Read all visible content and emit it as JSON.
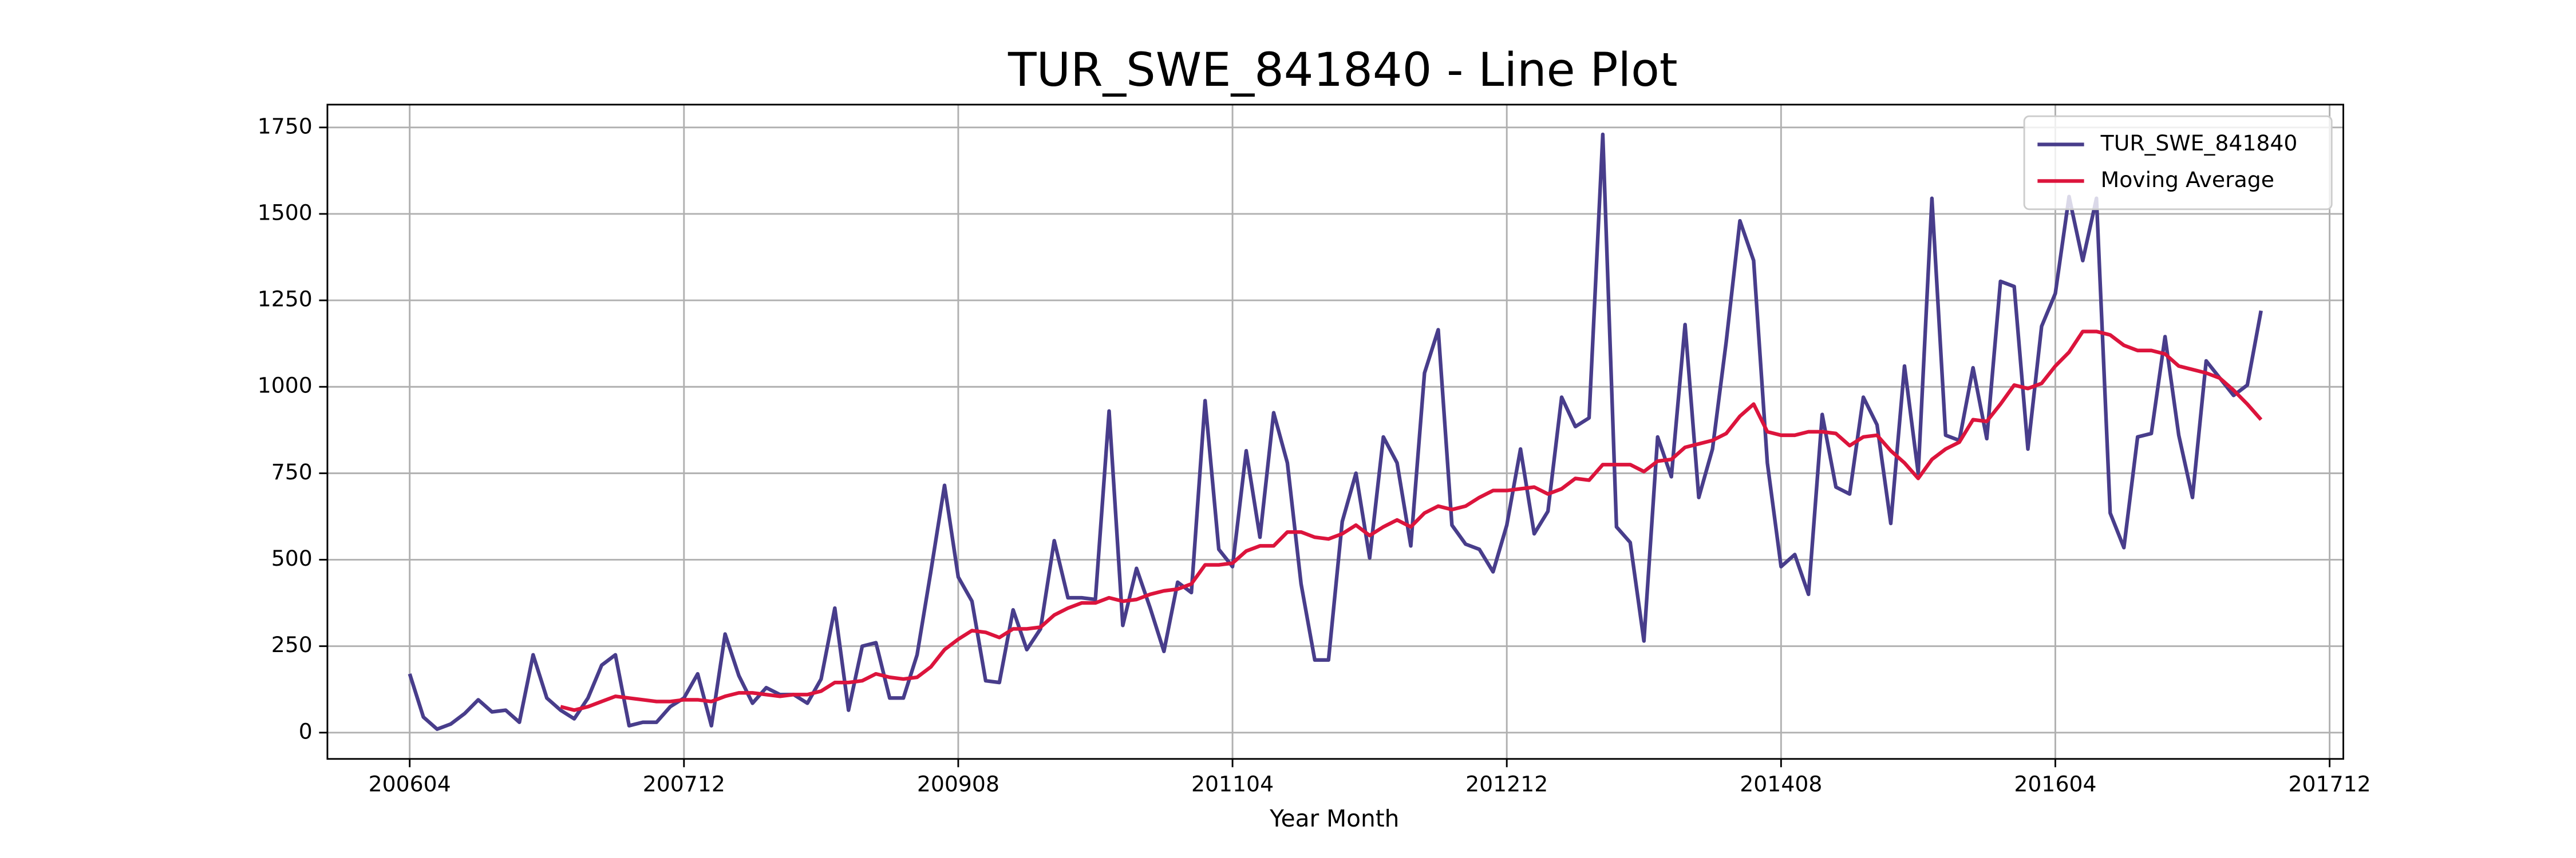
{
  "chart_data": {
    "type": "line",
    "title": "TUR_SWE_841840 - Line Plot",
    "xlabel": "Year Month",
    "x": [
      "200604",
      "200605",
      "200606",
      "200607",
      "200608",
      "200609",
      "200610",
      "200611",
      "200612",
      "200701",
      "200702",
      "200703",
      "200704",
      "200705",
      "200706",
      "200707",
      "200708",
      "200709",
      "200710",
      "200711",
      "200712",
      "200801",
      "200802",
      "200803",
      "200804",
      "200805",
      "200806",
      "200807",
      "200808",
      "200809",
      "200810",
      "200811",
      "200812",
      "200901",
      "200902",
      "200903",
      "200904",
      "200905",
      "200906",
      "200907",
      "200908",
      "200909",
      "200910",
      "200911",
      "200912",
      "201001",
      "201002",
      "201003",
      "201004",
      "201005",
      "201006",
      "201007",
      "201008",
      "201009",
      "201010",
      "201011",
      "201012",
      "201101",
      "201102",
      "201103",
      "201104",
      "201105",
      "201106",
      "201107",
      "201108",
      "201109",
      "201110",
      "201111",
      "201112",
      "201201",
      "201202",
      "201203",
      "201204",
      "201205",
      "201206",
      "201207",
      "201208",
      "201209",
      "201210",
      "201211",
      "201212",
      "201301",
      "201302",
      "201303",
      "201304",
      "201305",
      "201306",
      "201307",
      "201308",
      "201309",
      "201310",
      "201311",
      "201312",
      "201401",
      "201402",
      "201403",
      "201404",
      "201405",
      "201406",
      "201407",
      "201408",
      "201409",
      "201410",
      "201411",
      "201412",
      "201501",
      "201502",
      "201503",
      "201504",
      "201505",
      "201506",
      "201507",
      "201508",
      "201509",
      "201510",
      "201511",
      "201512",
      "201601",
      "201602",
      "201603",
      "201604",
      "201605",
      "201606",
      "201607",
      "201608",
      "201609",
      "201610",
      "201611",
      "201612",
      "201701",
      "201702",
      "201703",
      "201704",
      "201705",
      "201706",
      "201707"
    ],
    "series": [
      {
        "name": "TUR_SWE_841840",
        "color": "#483d8b",
        "values": [
          170,
          45,
          10,
          25,
          55,
          95,
          60,
          65,
          30,
          225,
          100,
          65,
          40,
          100,
          195,
          225,
          20,
          30,
          30,
          75,
          100,
          170,
          20,
          285,
          165,
          85,
          130,
          110,
          110,
          85,
          155,
          360,
          65,
          250,
          260,
          100,
          100,
          225,
          465,
          715,
          450,
          380,
          150,
          145,
          355,
          240,
          300,
          555,
          390,
          390,
          385,
          930,
          310,
          475,
          360,
          235,
          435,
          405,
          960,
          530,
          480,
          815,
          565,
          925,
          780,
          430,
          210,
          210,
          610,
          750,
          505,
          855,
          780,
          540,
          1040,
          1165,
          600,
          545,
          530,
          465,
          600,
          820,
          575,
          640,
          970,
          885,
          910,
          1730,
          595,
          550,
          265,
          855,
          740,
          1180,
          680,
          820,
          1130,
          1480,
          1365,
          780,
          480,
          515,
          400,
          920,
          710,
          690,
          970,
          890,
          605,
          1060,
          750,
          1545,
          860,
          845,
          1055,
          850,
          1305,
          1290,
          820,
          1175,
          1270,
          1550,
          1365,
          1545,
          635,
          535,
          855,
          865,
          1145,
          860,
          680,
          1075,
          1025,
          975,
          1005,
          1220
        ]
      },
      {
        "name": "Moving Average",
        "color": "#dc143c",
        "values": [
          null,
          null,
          null,
          null,
          null,
          null,
          null,
          null,
          null,
          null,
          null,
          75,
          65,
          75,
          90,
          105,
          100,
          95,
          90,
          90,
          95,
          95,
          90,
          105,
          115,
          115,
          110,
          105,
          110,
          110,
          120,
          145,
          145,
          150,
          170,
          160,
          155,
          160,
          190,
          240,
          270,
          295,
          290,
          275,
          300,
          300,
          305,
          340,
          360,
          375,
          375,
          390,
          380,
          385,
          400,
          410,
          415,
          430,
          485,
          485,
          490,
          525,
          540,
          540,
          580,
          580,
          565,
          560,
          575,
          600,
          570,
          595,
          615,
          595,
          635,
          655,
          645,
          655,
          680,
          700,
          700,
          705,
          710,
          690,
          705,
          735,
          730,
          775,
          775,
          775,
          755,
          785,
          790,
          825,
          835,
          845,
          865,
          915,
          950,
          870,
          860,
          860,
          870,
          870,
          865,
          830,
          855,
          860,
          815,
          780,
          735,
          790,
          820,
          840,
          905,
          900,
          950,
          1005,
          995,
          1010,
          1060,
          1100,
          1160,
          1160,
          1150,
          1120,
          1105,
          1105,
          1095,
          1060,
          1050,
          1040,
          1025,
          990,
          950,
          905
        ]
      }
    ],
    "xlim": [
      "200510",
      "201801"
    ],
    "xticks": [
      "200604",
      "200712",
      "200908",
      "201104",
      "201212",
      "201408",
      "201604",
      "201712"
    ],
    "ylim": [
      -76,
      1816
    ],
    "yticks": [
      0,
      250,
      500,
      750,
      1000,
      1250,
      1500,
      1750
    ],
    "grid": true,
    "legend": "upper right"
  }
}
